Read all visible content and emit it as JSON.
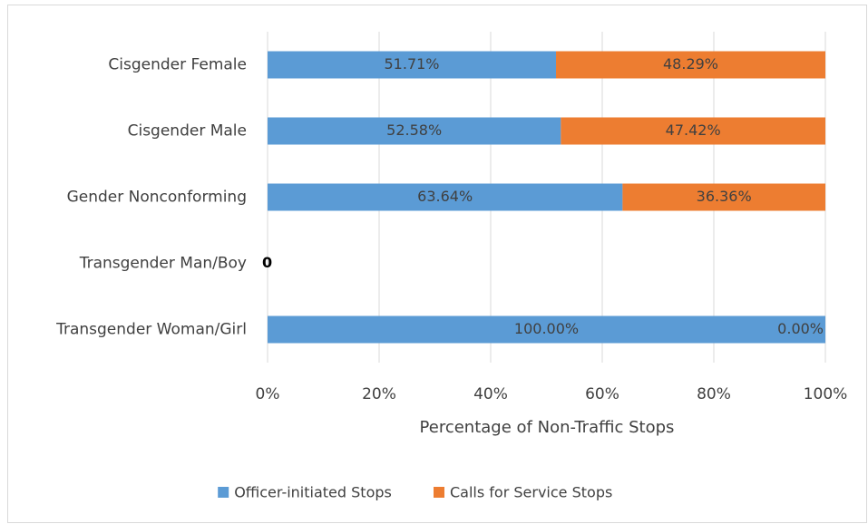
{
  "chart_data": {
    "type": "stacked_bar_horizontal",
    "x_label": "Percentage of Non-Traffic Stops",
    "categories": [
      "Cisgender Female",
      "Cisgender Male",
      "Gender Nonconforming",
      "Transgender Man/Boy",
      "Transgender Woman/Girl"
    ],
    "series": [
      {
        "name": "Officer-initiated Stops",
        "color": "#5b9bd5",
        "values": [
          51.71,
          52.58,
          63.64,
          0,
          100
        ],
        "value_labels": [
          "51.71%",
          "52.58%",
          "63.64%",
          "0",
          "100.00%"
        ]
      },
      {
        "name": "Calls for Service Stops",
        "color": "#ed7d31",
        "values": [
          48.29,
          47.42,
          36.36,
          null,
          0
        ],
        "value_labels": [
          "48.29%",
          "47.42%",
          "36.36%",
          null,
          "0.00%"
        ]
      }
    ],
    "xlim": [
      0,
      100
    ],
    "xticks": [
      {
        "value": 0,
        "label": "0%"
      },
      {
        "value": 20,
        "label": "20%"
      },
      {
        "value": 40,
        "label": "40%"
      },
      {
        "value": 60,
        "label": "60%"
      },
      {
        "value": 80,
        "label": "80%"
      },
      {
        "value": 100,
        "label": "100%"
      }
    ],
    "grid": true,
    "legend": "bottom"
  }
}
